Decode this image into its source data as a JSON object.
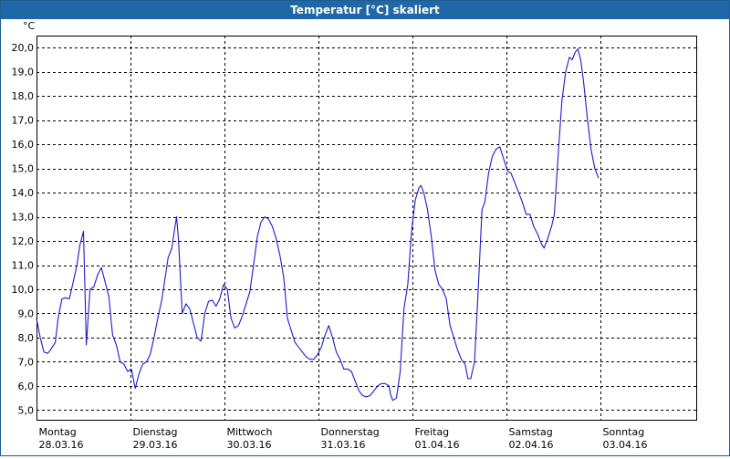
{
  "window": {
    "title": "Temperatur [°C] skaliert"
  },
  "chart_data": {
    "type": "line",
    "title": "Temperatur [°C] skaliert",
    "ylabel": "°C",
    "xlabel": "",
    "ylim": [
      4.6,
      20.5
    ],
    "xlim": [
      0,
      7
    ],
    "yticks": [
      "5,0",
      "6,0",
      "7,0",
      "8,0",
      "9,0",
      "10,0",
      "11,0",
      "12,0",
      "13,0",
      "14,0",
      "15,0",
      "16,0",
      "17,0",
      "18,0",
      "19,0",
      "20,0"
    ],
    "xticks": [
      {
        "day": "Montag",
        "date": "28.03.16"
      },
      {
        "day": "Dienstag",
        "date": "29.03.16"
      },
      {
        "day": "Mittwoch",
        "date": "30.03.16"
      },
      {
        "day": "Donnerstag",
        "date": "31.03.16"
      },
      {
        "day": "Freitag",
        "date": "01.04.16"
      },
      {
        "day": "Samstag",
        "date": "02.04.16"
      },
      {
        "day": "Sonntag",
        "date": "03.04.16"
      }
    ],
    "grid": true,
    "series": [
      {
        "name": "",
        "color": "#1c1ccc",
        "points": [
          [
            0.0,
            8.8
          ],
          [
            0.04,
            8.0
          ],
          [
            0.08,
            7.4
          ],
          [
            0.12,
            7.35
          ],
          [
            0.15,
            7.5
          ],
          [
            0.2,
            7.8
          ],
          [
            0.23,
            8.8
          ],
          [
            0.27,
            9.6
          ],
          [
            0.31,
            9.65
          ],
          [
            0.35,
            9.6
          ],
          [
            0.39,
            10.3
          ],
          [
            0.43,
            11.0
          ],
          [
            0.46,
            11.8
          ],
          [
            0.5,
            12.4
          ],
          [
            0.53,
            7.7
          ],
          [
            0.57,
            10.0
          ],
          [
            0.61,
            10.1
          ],
          [
            0.65,
            10.6
          ],
          [
            0.69,
            10.9
          ],
          [
            0.73,
            10.3
          ],
          [
            0.77,
            9.7
          ],
          [
            0.81,
            8.1
          ],
          [
            0.85,
            7.7
          ],
          [
            0.89,
            7.0
          ],
          [
            0.93,
            6.9
          ],
          [
            0.97,
            6.6
          ],
          [
            1.01,
            6.7
          ],
          [
            1.05,
            5.9
          ],
          [
            1.09,
            6.5
          ],
          [
            1.13,
            6.9
          ],
          [
            1.17,
            7.0
          ],
          [
            1.21,
            7.3
          ],
          [
            1.25,
            8.0
          ],
          [
            1.29,
            8.8
          ],
          [
            1.33,
            9.5
          ],
          [
            1.37,
            10.5
          ],
          [
            1.4,
            11.3
          ],
          [
            1.44,
            11.7
          ],
          [
            1.47,
            12.5
          ],
          [
            1.49,
            13.0
          ],
          [
            1.51,
            12.1
          ],
          [
            1.55,
            9.0
          ],
          [
            1.59,
            9.4
          ],
          [
            1.63,
            9.2
          ],
          [
            1.67,
            8.6
          ],
          [
            1.71,
            8.0
          ],
          [
            1.75,
            7.85
          ],
          [
            1.79,
            9.0
          ],
          [
            1.83,
            9.5
          ],
          [
            1.87,
            9.55
          ],
          [
            1.91,
            9.3
          ],
          [
            1.95,
            9.6
          ],
          [
            1.99,
            10.2
          ],
          [
            2.03,
            10.0
          ],
          [
            2.07,
            8.8
          ],
          [
            2.11,
            8.4
          ],
          [
            2.15,
            8.5
          ],
          [
            2.19,
            8.9
          ],
          [
            2.23,
            9.4
          ],
          [
            2.27,
            9.9
          ],
          [
            2.31,
            11.0
          ],
          [
            2.35,
            12.2
          ],
          [
            2.39,
            12.8
          ],
          [
            2.43,
            13.0
          ],
          [
            2.47,
            12.9
          ],
          [
            2.51,
            12.6
          ],
          [
            2.55,
            12.1
          ],
          [
            2.59,
            11.4
          ],
          [
            2.63,
            10.5
          ],
          [
            2.67,
            8.8
          ],
          [
            2.71,
            8.3
          ],
          [
            2.75,
            7.8
          ],
          [
            2.79,
            7.6
          ],
          [
            2.83,
            7.4
          ],
          [
            2.87,
            7.2
          ],
          [
            2.91,
            7.1
          ],
          [
            2.95,
            7.1
          ],
          [
            2.99,
            7.3
          ],
          [
            3.03,
            7.6
          ],
          [
            3.07,
            8.1
          ],
          [
            3.11,
            8.5
          ],
          [
            3.15,
            8.0
          ],
          [
            3.19,
            7.4
          ],
          [
            3.23,
            7.1
          ],
          [
            3.27,
            6.7
          ],
          [
            3.31,
            6.7
          ],
          [
            3.35,
            6.6
          ],
          [
            3.39,
            6.2
          ],
          [
            3.43,
            5.8
          ],
          [
            3.47,
            5.6
          ],
          [
            3.51,
            5.55
          ],
          [
            3.55,
            5.6
          ],
          [
            3.59,
            5.8
          ],
          [
            3.63,
            6.0
          ],
          [
            3.67,
            6.1
          ],
          [
            3.71,
            6.1
          ],
          [
            3.75,
            6.0
          ],
          [
            3.77,
            5.6
          ],
          [
            3.79,
            5.4
          ],
          [
            3.83,
            5.5
          ],
          [
            3.87,
            6.6
          ],
          [
            3.91,
            9.2
          ],
          [
            3.95,
            10.2
          ],
          [
            3.99,
            12.4
          ],
          [
            4.03,
            13.7
          ],
          [
            4.07,
            14.2
          ],
          [
            4.09,
            14.3
          ],
          [
            4.12,
            14.0
          ],
          [
            4.16,
            13.3
          ],
          [
            4.2,
            12.2
          ],
          [
            4.24,
            10.8
          ],
          [
            4.28,
            10.2
          ],
          [
            4.32,
            10.0
          ],
          [
            4.36,
            9.6
          ],
          [
            4.4,
            8.5
          ],
          [
            4.44,
            8.0
          ],
          [
            4.48,
            7.5
          ],
          [
            4.52,
            7.1
          ],
          [
            4.56,
            6.9
          ],
          [
            4.59,
            6.3
          ],
          [
            4.62,
            6.3
          ],
          [
            4.66,
            7.0
          ],
          [
            4.7,
            10.0
          ],
          [
            4.74,
            13.3
          ],
          [
            4.77,
            13.6
          ],
          [
            4.81,
            14.8
          ],
          [
            4.85,
            15.5
          ],
          [
            4.89,
            15.8
          ],
          [
            4.93,
            15.9
          ],
          [
            4.97,
            15.4
          ],
          [
            5.01,
            14.9
          ],
          [
            5.05,
            14.8
          ],
          [
            5.09,
            14.4
          ],
          [
            5.13,
            14.0
          ],
          [
            5.17,
            13.6
          ],
          [
            5.21,
            13.1
          ],
          [
            5.25,
            13.1
          ],
          [
            5.29,
            12.6
          ],
          [
            5.33,
            12.3
          ],
          [
            5.37,
            11.9
          ],
          [
            5.4,
            11.7
          ],
          [
            5.44,
            12.1
          ],
          [
            5.48,
            12.6
          ],
          [
            5.51,
            13.1
          ],
          [
            5.55,
            15.5
          ],
          [
            5.59,
            17.8
          ],
          [
            5.63,
            19.0
          ],
          [
            5.67,
            19.6
          ],
          [
            5.7,
            19.5
          ],
          [
            5.73,
            19.8
          ],
          [
            5.76,
            19.95
          ],
          [
            5.79,
            19.5
          ],
          [
            5.82,
            18.6
          ],
          [
            5.86,
            17.1
          ],
          [
            5.9,
            15.8
          ],
          [
            5.94,
            15.0
          ],
          [
            5.98,
            14.6
          ]
        ]
      }
    ]
  }
}
